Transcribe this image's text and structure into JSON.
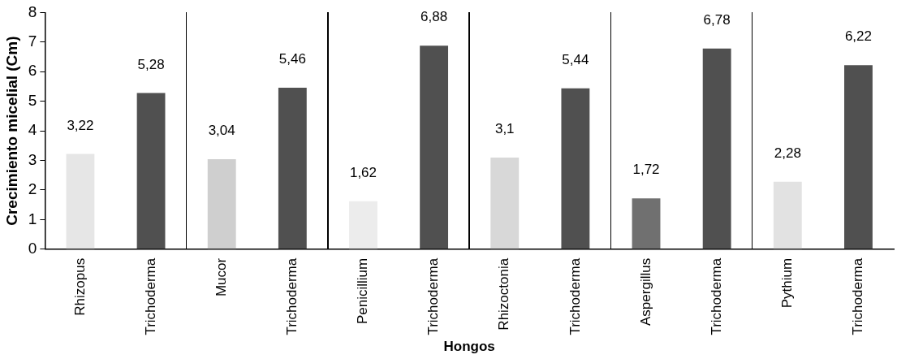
{
  "chart_data": {
    "type": "bar",
    "xlabel": "Hongos",
    "ylabel": "Crecimiento micelial (Cm)",
    "categories": [
      "Rhizopus",
      "Trichoderma",
      "Mucor",
      "Trichoderma",
      "Penicillium",
      "Trichoderma",
      "Rhizoctonia",
      "Trichoderma",
      "Aspergillus",
      "Trichoderma",
      "Pythium",
      "Trichoderma"
    ],
    "values": [
      3.22,
      5.28,
      3.04,
      5.46,
      1.62,
      6.88,
      3.1,
      5.44,
      1.72,
      6.78,
      2.28,
      6.22
    ],
    "value_labels": [
      "3,22",
      "5,28",
      "3,04",
      "5,46",
      "1,62",
      "6,88",
      "3,1",
      "5,44",
      "1,72",
      "6,78",
      "2,28",
      "6,22"
    ],
    "colors": [
      "#e6e6e6",
      "#505050",
      "#cfcfcf",
      "#505050",
      "#ececec",
      "#505050",
      "#d8d8d8",
      "#505050",
      "#707070",
      "#505050",
      "#e2e2e2",
      "#505050"
    ],
    "ylim": [
      0,
      8
    ],
    "yticks": [
      0,
      1,
      2,
      3,
      4,
      5,
      6,
      7,
      8
    ],
    "grid": false,
    "legend": false
  }
}
